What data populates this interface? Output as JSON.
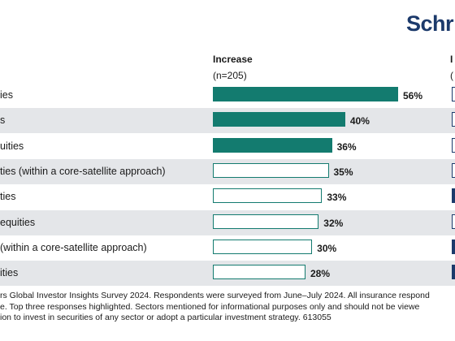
{
  "brand": {
    "logo_text": "Schr"
  },
  "columns": {
    "left_title": "Increase",
    "left_subtitle": "(n=205)",
    "right_title": "I",
    "right_subtitle": "("
  },
  "chart_data": {
    "type": "bar",
    "orientation": "horizontal",
    "title": "Increase",
    "subtitle": "(n=205)",
    "categories": [
      "ies",
      "s",
      "uities",
      "ties (within a core-satellite approach)",
      "ties",
      "equities",
      "(within a core-satellite approach)",
      "ities"
    ],
    "values": [
      56,
      40,
      36,
      35,
      33,
      32,
      30,
      28
    ],
    "value_labels": [
      "56%",
      "40%",
      "36%",
      "35%",
      "33%",
      "32%",
      "30%",
      "28%"
    ],
    "highlighted": [
      true,
      true,
      true,
      false,
      false,
      false,
      false,
      false
    ],
    "xlim": [
      0,
      100
    ],
    "colors": {
      "highlight": "#137b6f",
      "outline": "#137b6f",
      "right_series": "#1c3a6b"
    },
    "right_series_marks_filled": [
      false,
      false,
      false,
      false,
      true,
      false,
      true,
      true
    ]
  },
  "footnote": {
    "lines": [
      "rs Global Investor Insights Survey 2024. Respondents were surveyed from June–July 2024. All insurance respond",
      "e. Top three responses highlighted. Sectors mentioned for informational purposes only and should not be viewe",
      "ion to invest in securities of any sector or adopt a particular investment strategy. 613055"
    ]
  }
}
